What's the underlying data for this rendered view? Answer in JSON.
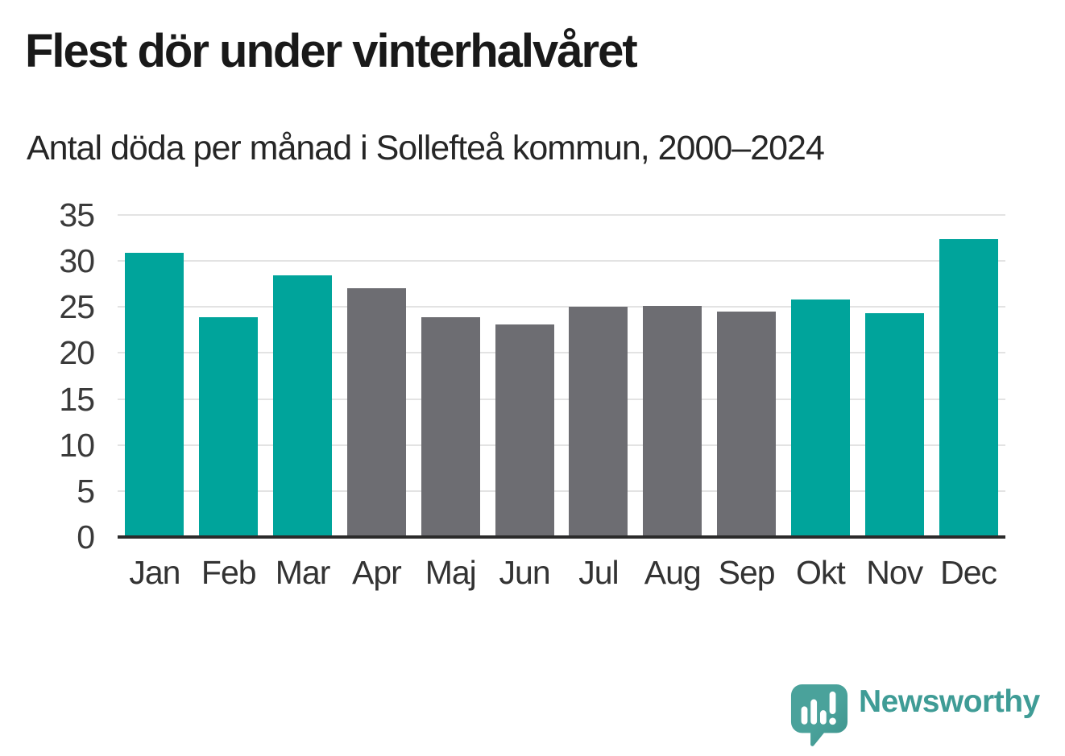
{
  "header": {
    "title": "Flest dör under vinterhalvåret",
    "subtitle": "Antal döda per månad i Sollefteå kommun, 2000–2024"
  },
  "chart_data": {
    "type": "bar",
    "title": "Flest dör under vinterhalvåret",
    "subtitle": "Antal döda per månad i Sollefteå kommun, 2000–2024",
    "categories": [
      "Jan",
      "Feb",
      "Mar",
      "Apr",
      "Maj",
      "Jun",
      "Jul",
      "Aug",
      "Sep",
      "Okt",
      "Nov",
      "Dec"
    ],
    "values": [
      30.9,
      23.9,
      28.4,
      27.0,
      23.9,
      23.1,
      25.0,
      25.1,
      24.5,
      25.8,
      24.3,
      32.4
    ],
    "bar_groups": [
      "winter",
      "winter",
      "winter",
      "summer",
      "summer",
      "summer",
      "summer",
      "summer",
      "summer",
      "winter",
      "winter",
      "winter"
    ],
    "group_colors": {
      "winter": "#00a49b",
      "summer": "#6d6d72"
    },
    "xlabel": "",
    "ylabel": "",
    "ylim": [
      0,
      35
    ],
    "yticks": [
      0,
      5,
      10,
      15,
      20,
      25,
      30,
      35
    ],
    "grid": true,
    "legend": false,
    "gridline_color": "#e3e3e3",
    "axis_line_color": "#2b2b2b",
    "tick_label_color": "#3a3a3a"
  },
  "footer": {
    "brand": "Newsworthy",
    "brand_color": "#3f9c96",
    "icon": "newsworthy-speech-bubble-chart-icon",
    "icon_color": "#48a099"
  }
}
